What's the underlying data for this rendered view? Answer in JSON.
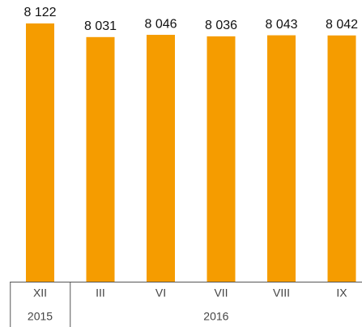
{
  "chart_data": {
    "type": "bar",
    "categories": [
      "XII",
      "III",
      "VI",
      "VII",
      "VIII",
      "IX"
    ],
    "values": [
      8122,
      8031,
      8046,
      8036,
      8043,
      8042
    ],
    "value_labels": [
      "8 122",
      "8 031",
      "8 046",
      "8 036",
      "8 043",
      "8 042"
    ],
    "groups": [
      {
        "label": "2015",
        "count": 1
      },
      {
        "label": "2016",
        "count": 5
      }
    ],
    "color": "#f59c00",
    "ylim": [
      6400,
      8200
    ]
  }
}
